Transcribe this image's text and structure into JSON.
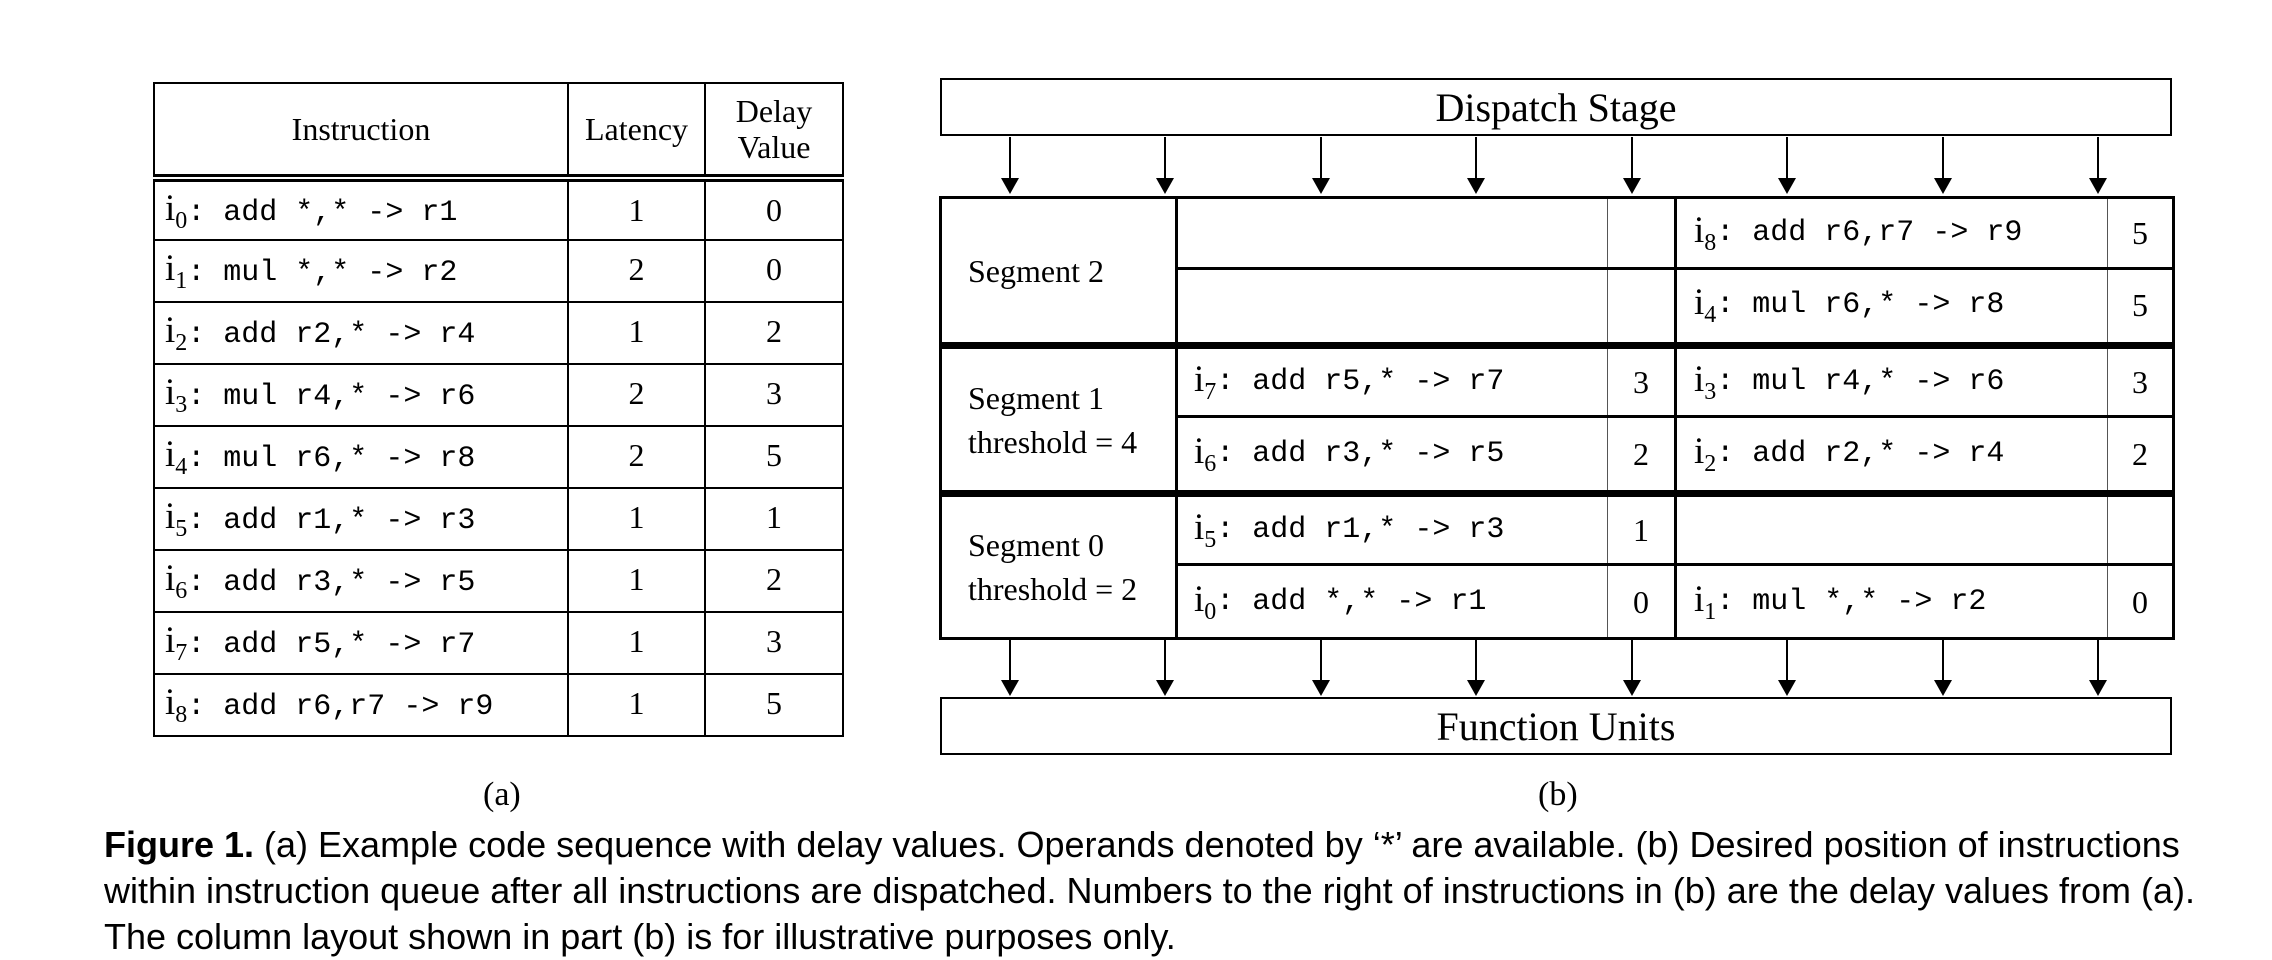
{
  "table_a": {
    "headers": {
      "instruction": "Instruction",
      "latency": "Latency",
      "delay_line1": "Delay",
      "delay_line2": "Value"
    },
    "rows": [
      {
        "i": "i",
        "sub": "0",
        "code": ": add *,* -> r1",
        "latency": "1",
        "delay": "0"
      },
      {
        "i": "i",
        "sub": "1",
        "code": ": mul *,* -> r2",
        "latency": "2",
        "delay": "0"
      },
      {
        "i": "i",
        "sub": "2",
        "code": ": add r2,* -> r4",
        "latency": "1",
        "delay": "2"
      },
      {
        "i": "i",
        "sub": "3",
        "code": ": mul r4,* -> r6",
        "latency": "2",
        "delay": "3"
      },
      {
        "i": "i",
        "sub": "4",
        "code": ": mul r6,* -> r8",
        "latency": "2",
        "delay": "5"
      },
      {
        "i": "i",
        "sub": "5",
        "code": ": add r1,* -> r3",
        "latency": "1",
        "delay": "1"
      },
      {
        "i": "i",
        "sub": "6",
        "code": ": add r3,* -> r5",
        "latency": "1",
        "delay": "2"
      },
      {
        "i": "i",
        "sub": "7",
        "code": ": add r5,* -> r7",
        "latency": "1",
        "delay": "3"
      },
      {
        "i": "i",
        "sub": "8",
        "code": ": add r6,r7 -> r9",
        "latency": "1",
        "delay": "5"
      }
    ],
    "caption": "(a)"
  },
  "diagram_b": {
    "dispatch_stage": "Dispatch Stage",
    "function_units": "Function Units",
    "segments": {
      "seg2": {
        "line1": "Segment 2"
      },
      "seg1": {
        "line1": "Segment 1",
        "line2": "threshold = 4"
      },
      "seg0": {
        "line1": "Segment 0",
        "line2": "threshold = 2"
      }
    },
    "cells": {
      "s2r1_right": {
        "i": "i",
        "sub": "8",
        "code": ": add r6,r7 -> r9",
        "delay": "5"
      },
      "s2r2_right": {
        "i": "i",
        "sub": "4",
        "code": ": mul r6,* -> r8",
        "delay": "5"
      },
      "s1r1_left": {
        "i": "i",
        "sub": "7",
        "code": ": add r5,* -> r7",
        "delay": "3"
      },
      "s1r1_right": {
        "i": "i",
        "sub": "3",
        "code": ": mul r4,* -> r6",
        "delay": "3"
      },
      "s1r2_left": {
        "i": "i",
        "sub": "6",
        "code": ": add r3,* -> r5",
        "delay": "2"
      },
      "s1r2_right": {
        "i": "i",
        "sub": "2",
        "code": ": add r2,* -> r4",
        "delay": "2"
      },
      "s0r1_left": {
        "i": "i",
        "sub": "5",
        "code": ": add r1,* -> r3",
        "delay": "1"
      },
      "s0r2_left": {
        "i": "i",
        "sub": "0",
        "code": ": add *,* -> r1",
        "delay": "0"
      },
      "s0r2_right": {
        "i": "i",
        "sub": "1",
        "code": ": mul *,* -> r2",
        "delay": "0"
      }
    },
    "caption": "(b)"
  },
  "figure_caption": {
    "label": "Figure 1.",
    "text": " (a) Example code sequence with delay values. Operands denoted by ‘*’ are available. (b) Desired position of instructions within instruction queue after all instructions are dispatched. Numbers to the right of instructions in (b) are the delay values from (a). The column layout shown in part (b) is for illustrative purposes only."
  }
}
